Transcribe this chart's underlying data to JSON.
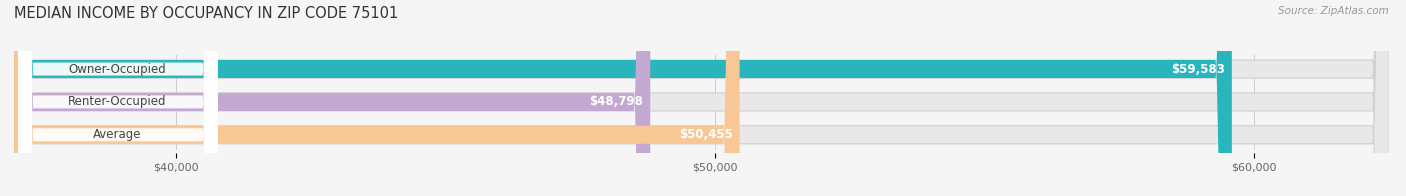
{
  "title": "MEDIAN INCOME BY OCCUPANCY IN ZIP CODE 75101",
  "source": "Source: ZipAtlas.com",
  "categories": [
    "Owner-Occupied",
    "Renter-Occupied",
    "Average"
  ],
  "values": [
    59583,
    48798,
    50455
  ],
  "bar_colors": [
    "#29b5bc",
    "#c3a8d1",
    "#f7c896"
  ],
  "value_labels": [
    "$59,583",
    "$48,798",
    "$50,455"
  ],
  "xmin": 37000,
  "xmax": 62500,
  "xticks": [
    40000,
    50000,
    60000
  ],
  "xtick_labels": [
    "$40,000",
    "$50,000",
    "$60,000"
  ],
  "background_color": "#f5f5f5",
  "bar_bg_color": "#e8e8e8",
  "title_fontsize": 10.5,
  "label_fontsize": 8.5,
  "value_fontsize": 8.5,
  "bar_height": 0.55,
  "fig_width": 14.06,
  "fig_height": 1.96
}
